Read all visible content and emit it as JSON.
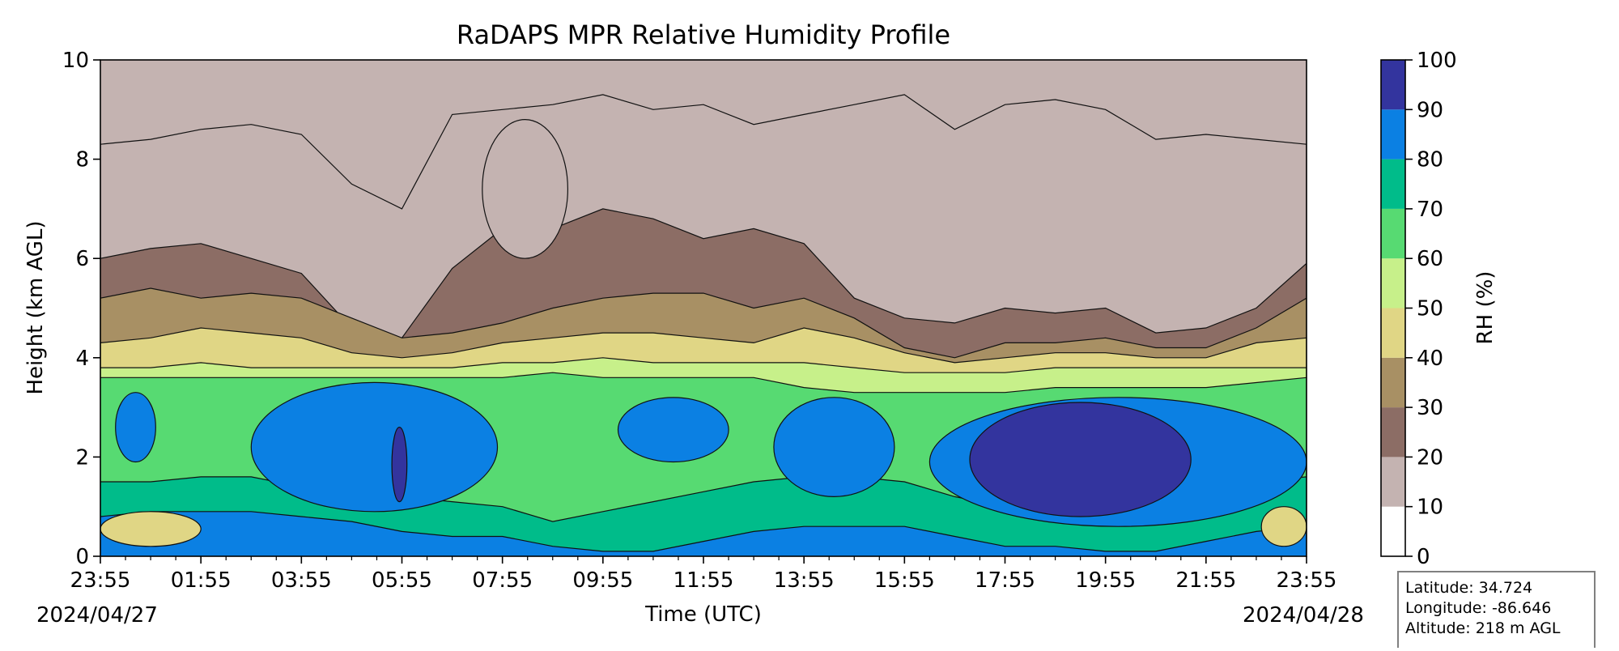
{
  "chart_data": {
    "type": "heatmap",
    "subtype": "filled-contour",
    "title": "RaDAPS MPR Relative Humidity Profile",
    "xlabel": "Time (UTC)",
    "ylabel": "Height (km AGL)",
    "x_tick_labels": [
      "23:55",
      "01:55",
      "03:55",
      "05:55",
      "07:55",
      "09:55",
      "11:55",
      "13:55",
      "15:55",
      "17:55",
      "19:55",
      "21:55",
      "23:55"
    ],
    "x_tick_hours": [
      0,
      2,
      4,
      6,
      8,
      10,
      12,
      14,
      16,
      18,
      20,
      22,
      24
    ],
    "date_start": "2024/04/27",
    "date_end": "2024/04/28",
    "ylim": [
      0,
      10
    ],
    "y_ticks": [
      0,
      2,
      4,
      6,
      8,
      10
    ],
    "colorbar": {
      "label": "RH (%)",
      "levels": [
        0,
        10,
        20,
        30,
        40,
        50,
        60,
        70,
        80,
        90,
        100
      ],
      "colors": [
        "#ffffff",
        "#c4b3b1",
        "#8c6d65",
        "#a89064",
        "#e0d685",
        "#c7f08a",
        "#57da72",
        "#00bc8a",
        "#0b80e3",
        "#33349e"
      ]
    },
    "contour_boundaries": [
      {
        "rh": 20,
        "heights": [
          8.3,
          8.4,
          8.6,
          8.7,
          8.5,
          7.5,
          7.0,
          8.9,
          9.0,
          9.1,
          9.3,
          9.0,
          9.1,
          8.7,
          8.9,
          9.1,
          9.3,
          8.6,
          9.1,
          9.2,
          9.0,
          8.4,
          8.5,
          8.4,
          8.3
        ]
      },
      {
        "rh": 30,
        "heights": [
          6.0,
          6.2,
          6.3,
          6.0,
          5.7,
          4.6,
          4.4,
          5.8,
          6.6,
          6.6,
          7.0,
          6.8,
          6.4,
          6.6,
          6.3,
          5.2,
          4.8,
          4.7,
          5.0,
          4.9,
          5.0,
          4.5,
          4.6,
          5.0,
          5.9
        ]
      },
      {
        "rh": 40,
        "heights": [
          5.2,
          5.4,
          5.2,
          5.3,
          5.2,
          4.8,
          4.4,
          4.5,
          4.7,
          5.0,
          5.2,
          5.3,
          5.3,
          5.0,
          5.2,
          4.8,
          4.2,
          4.0,
          4.3,
          4.3,
          4.4,
          4.2,
          4.2,
          4.6,
          5.2
        ]
      },
      {
        "rh": 50,
        "heights": [
          4.3,
          4.4,
          4.6,
          4.5,
          4.4,
          4.1,
          4.0,
          4.1,
          4.3,
          4.4,
          4.5,
          4.5,
          4.4,
          4.3,
          4.6,
          4.4,
          4.1,
          3.9,
          4.0,
          4.1,
          4.1,
          4.0,
          4.0,
          4.3,
          4.4
        ]
      },
      {
        "rh": 60,
        "heights": [
          3.8,
          3.8,
          3.9,
          3.8,
          3.8,
          3.8,
          3.8,
          3.8,
          3.9,
          3.9,
          4.0,
          3.9,
          3.9,
          3.9,
          3.9,
          3.8,
          3.7,
          3.7,
          3.7,
          3.8,
          3.8,
          3.8,
          3.8,
          3.8,
          3.8
        ]
      },
      {
        "rh": 70,
        "heights": [
          3.6,
          3.6,
          3.6,
          3.6,
          3.6,
          3.6,
          3.6,
          3.6,
          3.6,
          3.7,
          3.6,
          3.6,
          3.6,
          3.6,
          3.4,
          3.3,
          3.3,
          3.3,
          3.3,
          3.4,
          3.4,
          3.4,
          3.4,
          3.5,
          3.6
        ]
      },
      {
        "rh": 80,
        "heights": [
          1.5,
          1.5,
          1.6,
          1.6,
          1.4,
          1.3,
          1.2,
          1.1,
          1.0,
          0.7,
          0.9,
          1.1,
          1.3,
          1.5,
          1.6,
          1.6,
          1.5,
          1.2,
          1.0,
          1.0,
          1.2,
          1.3,
          1.4,
          1.5,
          1.6
        ]
      },
      {
        "rh": 90,
        "heights": [
          0.8,
          0.9,
          0.9,
          0.9,
          0.8,
          0.7,
          0.5,
          0.4,
          0.4,
          0.2,
          0.1,
          0.1,
          0.3,
          0.5,
          0.6,
          0.6,
          0.6,
          0.4,
          0.2,
          0.2,
          0.1,
          0.1,
          0.3,
          0.5,
          0.6
        ]
      }
    ],
    "moist_features": [
      {
        "rh": 90,
        "x_hours": [
          0.3,
          1.1
        ],
        "z_km": [
          1.9,
          3.3
        ]
      },
      {
        "rh": 90,
        "x_hours": [
          3.0,
          7.9
        ],
        "z_km": [
          0.9,
          3.5
        ]
      },
      {
        "rh": 100,
        "x_hours": [
          5.8,
          6.1
        ],
        "z_km": [
          1.1,
          2.6
        ]
      },
      {
        "rh": 90,
        "x_hours": [
          10.3,
          12.5
        ],
        "z_km": [
          1.9,
          3.2
        ]
      },
      {
        "rh": 90,
        "x_hours": [
          13.4,
          15.8
        ],
        "z_km": [
          1.2,
          3.2
        ]
      },
      {
        "rh": 90,
        "x_hours": [
          16.5,
          24.0
        ],
        "z_km": [
          0.6,
          3.2
        ]
      },
      {
        "rh": 100,
        "x_hours": [
          17.3,
          21.7
        ],
        "z_km": [
          0.8,
          3.1
        ]
      },
      {
        "rh": 50,
        "x_hours": [
          0.0,
          2.0
        ],
        "z_km": [
          0.2,
          0.9
        ]
      },
      {
        "rh": 50,
        "x_hours": [
          23.1,
          24.0
        ],
        "z_km": [
          0.2,
          1.0
        ]
      }
    ],
    "dry_features": [
      {
        "rh": 20,
        "x_hours": [
          7.6,
          9.3
        ],
        "z_km": [
          6.0,
          8.8
        ]
      }
    ]
  },
  "station_info": {
    "latitude": "Latitude: 34.724",
    "longitude": "Longitude: -86.646",
    "altitude": "Altitude: 218 m AGL"
  }
}
